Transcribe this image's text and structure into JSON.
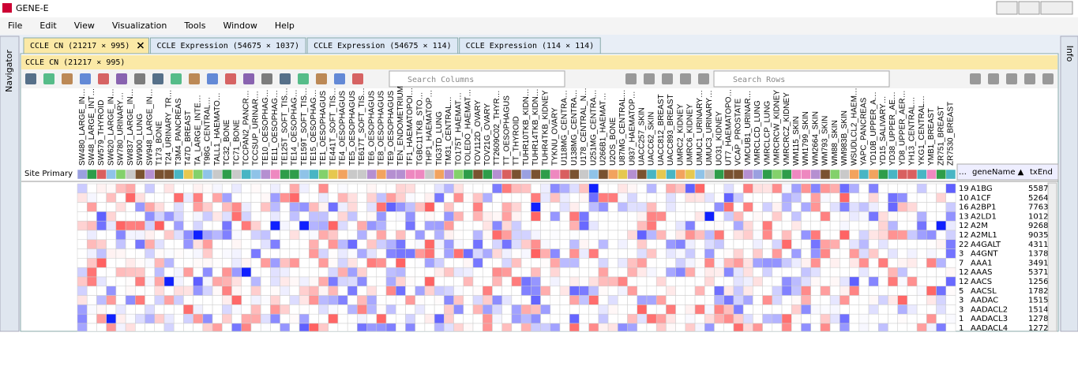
{
  "window": {
    "title": "GENE-E"
  },
  "menu": [
    "File",
    "Edit",
    "View",
    "Visualization",
    "Tools",
    "Window",
    "Help"
  ],
  "tabs": [
    "CCLE CN (21217 × 995)",
    "CCLE Expression (54675 × 1037)",
    "CCLE Expression (54675 × 114)",
    "CCLE Expression (114 × 114)"
  ],
  "navigator": "Navigator",
  "info": "Info",
  "panel_title": "CCLE CN (21217 × 995)",
  "search_columns": "Search Columns",
  "search_rows": "Search Rows",
  "row_annotation_label": "Site Primary",
  "columns": [
    "SW480_LARGE_IN…",
    "SW48_LARGE_INT…",
    "SW579_THYROID",
    "SW620_LARGE_IN…",
    "SW780_URINARY…",
    "SW837_LARGE_IN…",
    "SW900_LUNG",
    "SW948_LARGE_IN…",
    "T173_BONE",
    "T24_URINARY_TR…",
    "T3M4_PANCREAS",
    "T47D_BREAST",
    "TA_LARGE_INTE…",
    "T98G_CENTRAL…",
    "TALL1_HAEMATO…",
    "TC32_BONE",
    "TC71_BONE",
    "TCCPAN2_PANCR…",
    "TCCSUP_URINAR…",
    "TE10_OESOPHAG…",
    "TE11_OESOPHAG…",
    "TE125T_SOFT_TIS…",
    "TE14_OESOPHAG…",
    "TE159T_SOFT_TIS…",
    "TE15_OESOPHAG…",
    "TE1_OESOPHAGUS",
    "TE441T_SOFT_TIS…",
    "TE4_OESOPHAGUS",
    "TE5_OESOPHAGUS",
    "TE617T_SOFT_TIS…",
    "TE6_OESOPHAGUS",
    "TE8_OESOPHAGUS",
    "TE9_OESOPHAGUS",
    "TEN_ENDOMETRIUM",
    "TF1_HAEMATOPOI…",
    "TGBC11TKB_STO…",
    "THP1_HAEMATOP…",
    "TIG3TD_LUNG",
    "TM31_CENTRAL…",
    "TO175T_HAEMAT…",
    "TOLEDO_HAEMAT…",
    "TOV112D_OVARY",
    "TOV21G_OVARY",
    "TT2609C02_THYR…",
    "TT_OESOPHAGUS",
    "TT_THYROID",
    "TUHR10TKB_KIDN…",
    "TUHR14TKB_KIDN…",
    "TUHR4TKB_KIDNEY",
    "TYKNU_OVARY",
    "U118MG_CENTRA…",
    "U138MG_CENTRA…",
    "U178_CENTRAL_N…",
    "U251MG_CENTRA…",
    "U266B1_HAEMAT…",
    "U2OS_BONE",
    "U87MG_CENTRAL…",
    "U937_HAEMATOP…",
    "UACC257_SKIN",
    "UACC62_SKIN",
    "UACC812_BREAST",
    "UACC893_BREAST",
    "UMRC2_KIDNEY",
    "UMRC6_KIDNEY",
    "UMUC1_URINARY…",
    "UMUC3_URINARY…",
    "UO31_KIDNEY",
    "UT7_HAEMATOPO…",
    "VCAP_PROSTATE",
    "VMCUB1_URINAR…",
    "VMRCLCD_LUNG",
    "VMRCLCP_LUNG",
    "VMRCRCW_KIDNEY",
    "VMRCRCZ_KIDNEY",
    "WM115_SKIN",
    "WM1799_SKIN",
    "WM2664_SKIN",
    "WM793_SKIN",
    "WM88_SKIN",
    "WM983B_SKIN",
    "WSUDLCL2_HAEM…",
    "YAPC_PANCREAS",
    "YD10B_UPPER_A…",
    "YD15_SALIVARY…",
    "YD38_UPPER_AE…",
    "YD8_UPPER_AER…",
    "YH13_CENTRAL…",
    "YKG1_CENTRAL…",
    "YMB1_BREAST",
    "ZR751_BREAST",
    "ZR7530_BREAST"
  ],
  "row_table": {
    "headers": [
      "…",
      "geneName ▲",
      "txEnd"
    ],
    "rows": [
      [
        "19",
        "A1BG",
        "5587"
      ],
      [
        "10",
        "A1CF",
        "5264"
      ],
      [
        "16",
        "A2BP1",
        "7763"
      ],
      [
        "13",
        "A2LD1",
        "1012"
      ],
      [
        "12",
        "A2M",
        "9268"
      ],
      [
        "12",
        "A2ML1",
        "9035"
      ],
      [
        "22",
        "A4GALT",
        "4311"
      ],
      [
        "3",
        "A4GNT",
        "1378"
      ],
      [
        "7",
        "AAA1",
        "3491"
      ],
      [
        "12",
        "AAAS",
        "5371"
      ],
      [
        "12",
        "AACS",
        "1256"
      ],
      [
        "5",
        "AACSL",
        "1782"
      ],
      [
        "3",
        "AADAC",
        "1515"
      ],
      [
        "3",
        "AADACL2",
        "1514"
      ],
      [
        "1",
        "AADACL3",
        "1278"
      ],
      [
        "1",
        "AADACL4",
        "1272"
      ]
    ]
  }
}
